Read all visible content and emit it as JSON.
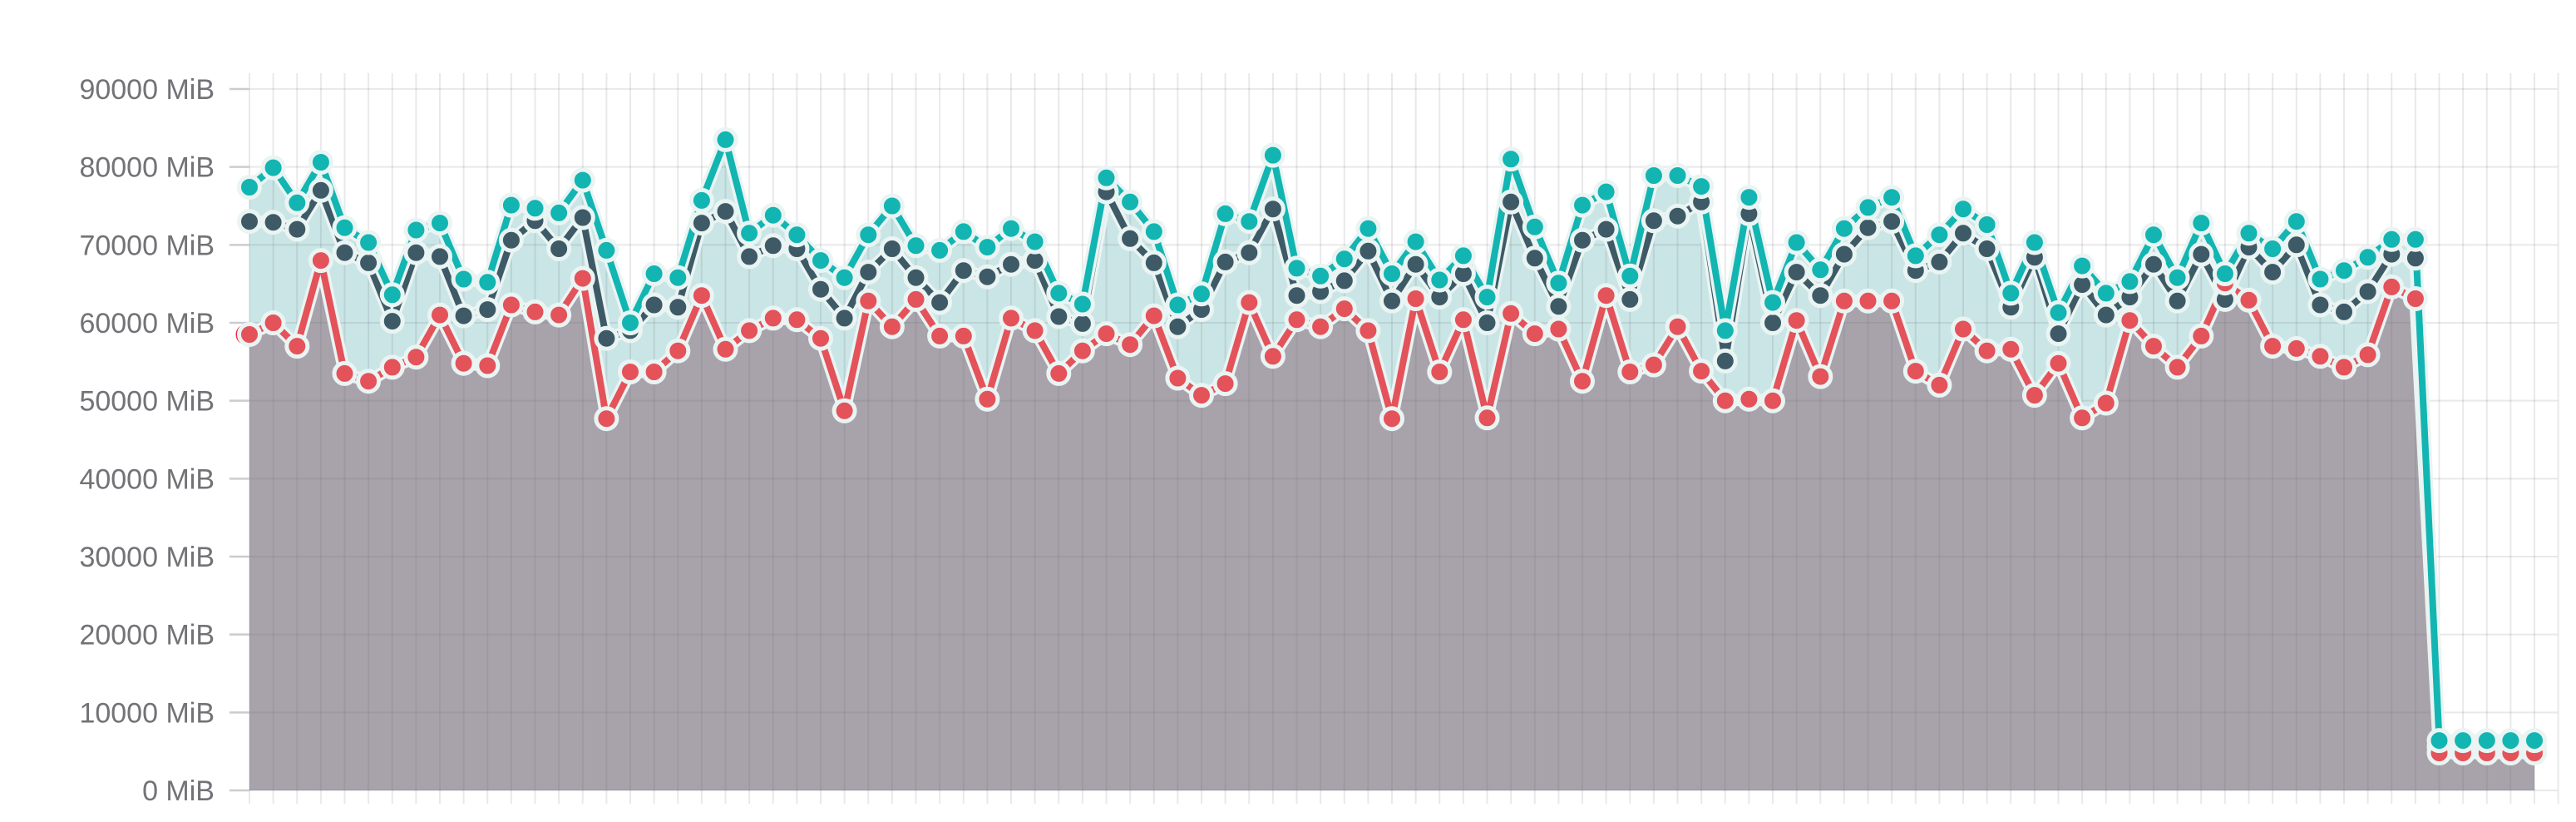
{
  "chart_data": {
    "type": "line",
    "title": "",
    "unit": "MiB",
    "legend_visible": false,
    "grid": {
      "vertical": true,
      "horizontal": true,
      "color": "rgba(100,100,112,0.14)"
    },
    "background": "#ffffff",
    "y_axis": {
      "min": 0,
      "max": 90000,
      "tick_interval": 10000,
      "tick_labels": [
        "90000 MiB",
        "80000 MiB",
        "70000 MiB",
        "60000 MiB",
        "50000 MiB",
        "40000 MiB",
        "30000 MiB",
        "20000 MiB",
        "10000 MiB",
        "0 MiB"
      ],
      "label_color": "#727277"
    },
    "x_axis": {
      "labels_visible": false,
      "num_points": 97
    },
    "halo_color": "#e9f4f3",
    "series": [
      {
        "name": "teal-series",
        "color": "#12b5b1",
        "area_fill": "rgba(60,160,158,0.27)",
        "values": [
          77400,
          79900,
          75400,
          80600,
          72200,
          70300,
          63600,
          71900,
          72800,
          65600,
          65200,
          75100,
          74700,
          74100,
          78300,
          69300,
          60000,
          66300,
          65800,
          75700,
          83500,
          71500,
          73800,
          71300,
          68000,
          65800,
          71300,
          75000,
          69900,
          69300,
          71700,
          69700,
          72100,
          70400,
          63800,
          62400,
          78600,
          75500,
          71700,
          62300,
          63700,
          74000,
          73000,
          81500,
          67000,
          66000,
          68200,
          72100,
          66300,
          70400,
          65500,
          68600,
          63300,
          81000,
          72300,
          65100,
          75100,
          76800,
          66000,
          78900,
          78900,
          77500,
          59000,
          76100,
          62600,
          70300,
          66800,
          72100,
          74800,
          76100,
          68600,
          71300,
          74600,
          72600,
          63800,
          70300,
          61300,
          67300,
          63800,
          65300,
          71300,
          65800,
          72800,
          66300,
          71500,
          69500,
          73000,
          65600,
          66700,
          68400,
          70700,
          70700,
          6400,
          6400,
          6400,
          6400,
          6400
        ]
      },
      {
        "name": "dark-slate-series",
        "color": "#3d5a66",
        "area_fill": null,
        "values": [
          73000,
          72900,
          72000,
          77000,
          69000,
          67700,
          60200,
          69000,
          68500,
          60900,
          61700,
          70600,
          73100,
          69500,
          73500,
          58000,
          59000,
          62300,
          62000,
          72800,
          74300,
          68500,
          69900,
          69500,
          64300,
          60600,
          66500,
          69500,
          65800,
          62600,
          66700,
          65900,
          67500,
          68000,
          60800,
          59900,
          76800,
          70800,
          67700,
          59500,
          61700,
          67800,
          69000,
          74600,
          63500,
          64000,
          65400,
          69200,
          62800,
          67500,
          63300,
          66300,
          60000,
          75500,
          68300,
          62100,
          70600,
          72000,
          63000,
          73100,
          73700,
          75500,
          55100,
          74000,
          60000,
          66500,
          63500,
          68800,
          72200,
          73000,
          66700,
          67800,
          71500,
          69500,
          62000,
          68400,
          58600,
          64900,
          61000,
          63300,
          67500,
          62800,
          68800,
          63000,
          69700,
          66500,
          70000,
          62300,
          61400,
          64000,
          68800,
          68300,
          5600,
          5600,
          5600,
          5600,
          5600
        ]
      },
      {
        "name": "red-series",
        "color": "#e4525a",
        "area_fill": "#a8a3ab",
        "first_point_highlight": "#fa2642",
        "values": [
          58500,
          60000,
          57000,
          68000,
          53500,
          52500,
          54300,
          55600,
          61000,
          54800,
          54500,
          62300,
          61400,
          61000,
          65700,
          47700,
          53700,
          53700,
          56400,
          63500,
          56600,
          59000,
          60600,
          60400,
          58000,
          48700,
          62800,
          59500,
          63000,
          58300,
          58300,
          50200,
          60600,
          59000,
          53500,
          56400,
          58600,
          57200,
          60900,
          52900,
          50700,
          52200,
          62600,
          55700,
          60400,
          59500,
          61800,
          59000,
          47700,
          63100,
          53700,
          60400,
          47800,
          61200,
          58600,
          59200,
          52500,
          63500,
          53700,
          54600,
          59500,
          53800,
          50000,
          50200,
          50000,
          60300,
          53100,
          62800,
          62800,
          62800,
          53800,
          52000,
          59200,
          56400,
          56600,
          50700,
          54800,
          47800,
          49700,
          60300,
          57000,
          54300,
          58300,
          65100,
          62900,
          57000,
          56700,
          55700,
          54300,
          55900,
          64600,
          63100,
          4800,
          4800,
          4800,
          4800,
          4800
        ]
      }
    ]
  }
}
